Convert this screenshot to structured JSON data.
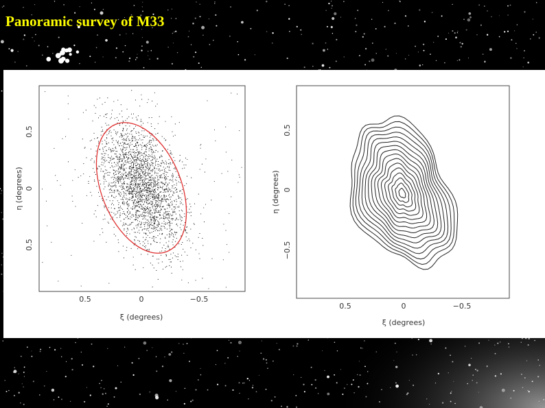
{
  "title": "Panoramic survey of M33",
  "left_plot": {
    "x_label": "ξ (degrees)",
    "y_label": "η (degrees)",
    "x_ticks": [
      "0.5",
      "0",
      "−0.5"
    ],
    "y_ticks": [
      "0.5",
      "0",
      "0.5"
    ]
  },
  "right_plot": {
    "x_label": "ξ (degrees)",
    "y_label": "η (degrees)",
    "x_ticks": [
      "0.5",
      "0",
      "−0.5"
    ],
    "y_ticks": [
      "0.5",
      "0",
      "−0.5"
    ]
  }
}
